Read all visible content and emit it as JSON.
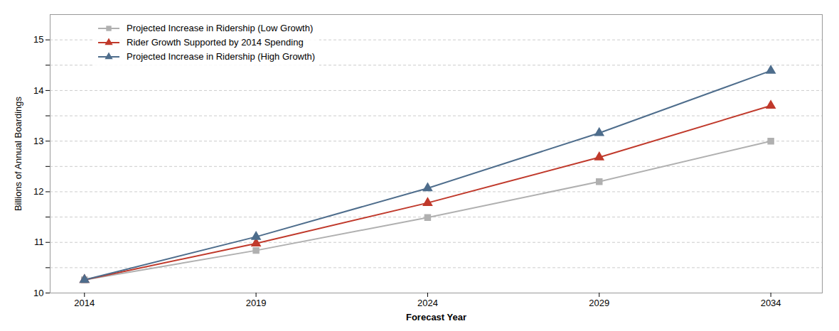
{
  "chart_data": {
    "type": "line",
    "x": [
      2014,
      2019,
      2024,
      2029,
      2034
    ],
    "series": [
      {
        "name": "Projected Increase in Ridership (Low Growth)",
        "color": "#b0b0b0",
        "marker": "square",
        "values": [
          10.26,
          10.84,
          11.49,
          12.2,
          13.0
        ]
      },
      {
        "name": "Rider Growth Supported by 2014 Spending",
        "color": "#c0392b",
        "marker": "triangle",
        "values": [
          10.26,
          10.98,
          11.78,
          12.68,
          13.7
        ]
      },
      {
        "name": "Projected Increase in Ridership (High Growth)",
        "color": "#4e6d8c",
        "marker": "triangle",
        "values": [
          10.26,
          11.11,
          12.07,
          13.16,
          14.39
        ]
      }
    ],
    "x_label": "Forecast Year",
    "y_label": "Billions of Annual Boardings",
    "xlim": [
      2013.0,
      2035.5
    ],
    "xticks": [
      2014,
      2019,
      2024,
      2029,
      2034
    ],
    "ylim": [
      10.0,
      15.5
    ],
    "yticks": [
      10,
      {
        "value": 10.5,
        "label": ""
      },
      11,
      {
        "value": 11.5,
        "label": ""
      },
      12,
      {
        "value": 12.5,
        "label": ""
      },
      13,
      {
        "value": 13.5,
        "label": ""
      },
      14,
      {
        "value": 14.5,
        "label": ""
      },
      15
    ],
    "grid": true,
    "legend": "upper left"
  }
}
